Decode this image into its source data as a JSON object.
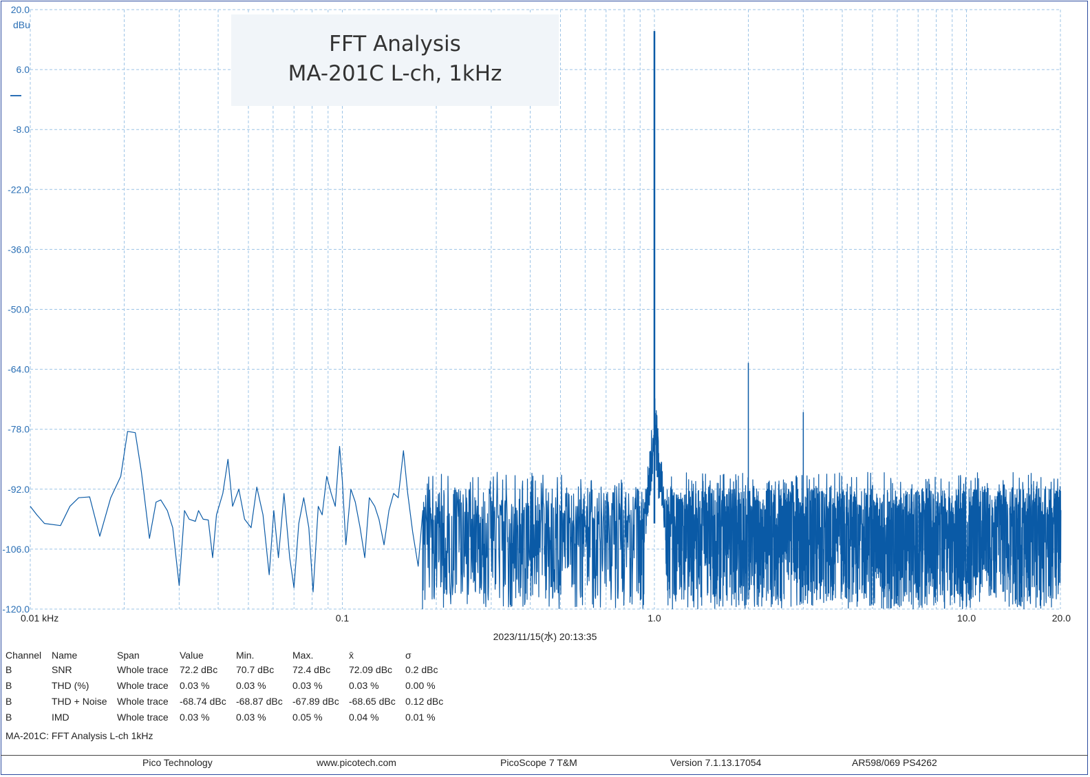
{
  "chart_data": {
    "type": "line",
    "title": "FFT Analysis",
    "subtitle": "MA-201C L-ch, 1kHz",
    "ylabel": "dBu",
    "xscale": "log",
    "xlim": [
      0.01,
      20.0
    ],
    "ylim": [
      -120,
      20
    ],
    "grid": true,
    "y_ticks": [
      "20.0",
      "6.0",
      "-8.0",
      "-22.0",
      "-36.0",
      "-50.0",
      "-64.0",
      "-78.0",
      "-92.0",
      "-106.0",
      "-120.0"
    ],
    "x_ticks": [
      {
        "value": 0.01,
        "label": "0.01 kHz"
      },
      {
        "value": 0.1,
        "label": "0.1"
      },
      {
        "value": 1.0,
        "label": "1.0"
      },
      {
        "value": 10.0,
        "label": "10.0"
      },
      {
        "value": 20.0,
        "label": "20.0"
      }
    ],
    "line_color": "#0a5aa6",
    "peaks": [
      {
        "x": 1.0,
        "y": 15.0
      },
      {
        "x": 2.0,
        "y": -62.5
      },
      {
        "x": 3.0,
        "y": -74.0
      },
      {
        "x": 5.0,
        "y": -91.0
      }
    ],
    "series": [
      {
        "x": [
          0.01,
          0.0105,
          0.0111,
          0.0125,
          0.0134,
          0.0143,
          0.0155,
          0.0167,
          0.0181,
          0.0195,
          0.0205,
          0.0217,
          0.0227,
          0.0241,
          0.0253,
          0.0262,
          0.0275,
          0.0286,
          0.03,
          0.0312,
          0.0323,
          0.0338,
          0.0346,
          0.0358,
          0.0372,
          0.0384,
          0.0395,
          0.0414,
          0.043,
          0.0445,
          0.0466,
          0.0486,
          0.051,
          0.0532,
          0.0557,
          0.0583,
          0.0603,
          0.0624,
          0.065,
          0.0678,
          0.07,
          0.0725,
          0.0752,
          0.0781,
          0.0806,
          0.0837,
          0.0862,
          0.0891,
          0.0921,
          0.0949,
          0.098,
          0.1,
          0.1026,
          0.1065,
          0.11,
          0.114,
          0.118,
          0.122,
          0.127,
          0.131,
          0.136,
          0.141,
          0.146,
          0.151,
          0.157,
          0.162,
          0.168,
          0.175,
          0.181
        ],
        "y": [
          -96,
          -98,
          -100,
          -100.5,
          -96,
          -94,
          -93.8,
          -103,
          -94,
          -89,
          -78.5,
          -78.8,
          -88,
          -103.5,
          -95,
          -94.5,
          -97,
          -101,
          -114.5,
          -97,
          -99,
          -99.5,
          -97,
          -99,
          -99.2,
          -108,
          -98,
          -93,
          -85,
          -96,
          -92,
          -99,
          -101,
          -91.5,
          -98,
          -112,
          -97,
          -108,
          -93,
          -108,
          -115,
          -100,
          -94,
          -101,
          -116,
          -96,
          -98,
          -89,
          -93,
          -96,
          -82,
          -90,
          -105,
          -92,
          -95,
          -101,
          -108,
          -94,
          -96,
          -99,
          -105,
          -97,
          -93,
          -94,
          -83,
          -93,
          -102,
          -110,
          -97
        ]
      }
    ]
  },
  "timestamp": "2023/11/15(水) 20:13:35",
  "measurements": {
    "headers": [
      "Channel",
      "Name",
      "Span",
      "Value",
      "Min.",
      "Max.",
      "x̄",
      "σ"
    ],
    "rows": [
      [
        "B",
        "SNR",
        "Whole trace",
        "72.2 dBc",
        "70.7 dBc",
        "72.4 dBc",
        "72.09 dBc",
        "0.2 dBc"
      ],
      [
        "B",
        "THD (%)",
        "Whole trace",
        "0.03 %",
        "0.03 %",
        "0.03 %",
        "0.03 %",
        "0.00 %"
      ],
      [
        "B",
        "THD + Noise",
        "Whole trace",
        "-68.74 dBc",
        "-68.87 dBc",
        "-67.89 dBc",
        "-68.65 dBc",
        "0.12 dBc"
      ],
      [
        "B",
        "IMD",
        "Whole trace",
        "0.03 %",
        "0.03 %",
        "0.05 %",
        "0.04 %",
        "0.01 %"
      ]
    ]
  },
  "caption": "MA-201C: FFT Analysis L-ch 1kHz",
  "footer": {
    "company": "Pico Technology",
    "website": "www.picotech.com",
    "product": "PicoScope 7 T&M",
    "version": "Version 7.1.13.17054",
    "device": "AR598/069 PS4262"
  }
}
